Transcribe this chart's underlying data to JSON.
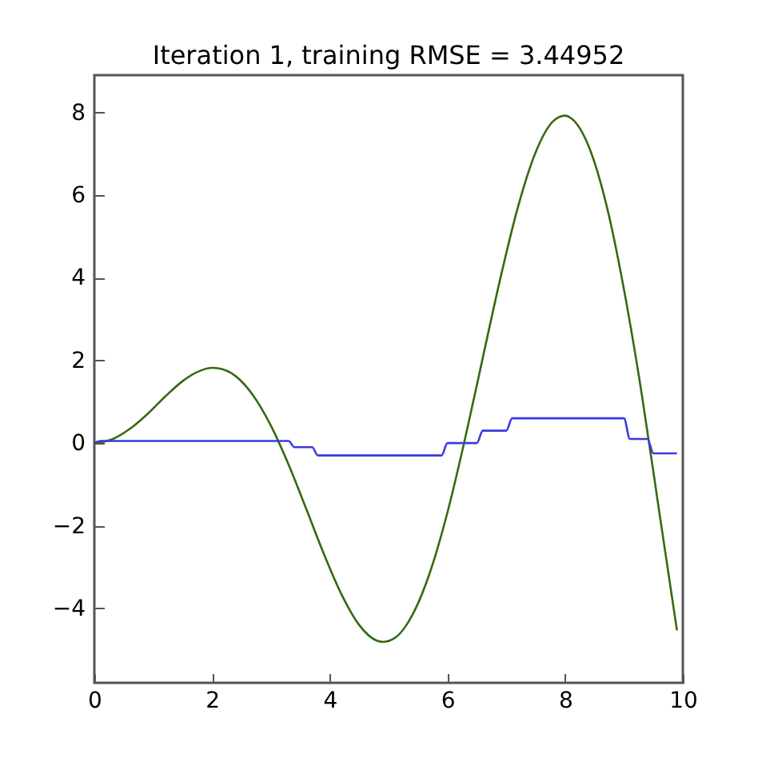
{
  "chart_data": {
    "type": "line",
    "title": "Iteration 1, training RMSE = 3.44952",
    "xlim": [
      0,
      10
    ],
    "xticks": [
      0,
      2,
      4,
      6,
      8,
      10
    ],
    "ylim": [
      -5.8,
      8.9
    ],
    "yticks": [
      -4,
      -2,
      0,
      2,
      4,
      6,
      8
    ],
    "grid": false,
    "series": [
      {
        "color": "#356a10",
        "x": [
          0,
          0.3,
          0.6,
          0.9,
          1.2,
          1.5,
          1.8,
          2.0,
          2.1,
          2.4,
          2.7,
          3.0,
          3.3,
          3.6,
          3.9,
          4.2,
          4.5,
          4.8,
          4.9,
          5.1,
          5.4,
          5.7,
          6.0,
          6.3,
          6.6,
          6.9,
          7.2,
          7.5,
          7.8,
          8.0,
          8.1,
          8.4,
          8.7,
          9.0,
          9.3,
          9.6,
          9.9
        ],
        "values": [
          0,
          0.09,
          0.34,
          0.7,
          1.12,
          1.5,
          1.75,
          1.82,
          1.81,
          1.62,
          1.15,
          0.42,
          -0.52,
          -1.59,
          -2.68,
          -3.66,
          -4.4,
          -4.78,
          -4.81,
          -4.72,
          -4.17,
          -3.14,
          -1.68,
          0.11,
          2.06,
          3.99,
          5.72,
          7.04,
          7.79,
          7.92,
          7.86,
          7.18,
          5.77,
          3.71,
          1.2,
          -1.67,
          -4.53
        ]
      },
      {
        "color": "#3a3ae0",
        "x": [
          0,
          0.1,
          3.3,
          3.4,
          3.7,
          3.8,
          5.9,
          6.0,
          6.5,
          6.6,
          7.0,
          7.1,
          9.0,
          9.1,
          9.4,
          9.5,
          9.9
        ],
        "values": [
          0,
          0.05,
          0.05,
          -0.1,
          -0.1,
          -0.3,
          -0.3,
          0,
          0,
          0.3,
          0.3,
          0.6,
          0.6,
          0.1,
          0.1,
          -0.25,
          -0.25
        ]
      }
    ]
  }
}
